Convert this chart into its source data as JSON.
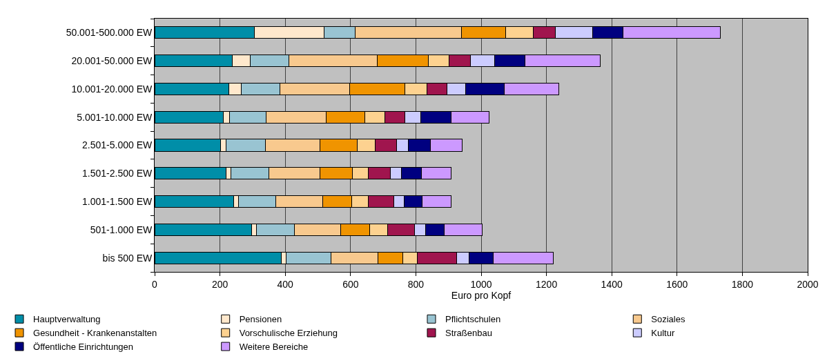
{
  "chart_data": {
    "type": "bar",
    "orientation": "horizontal",
    "stacked": true,
    "categories": [
      "50.001-500.000 EW",
      "20.001-50.000 EW",
      "10.001-20.000 EW",
      "5.001-10.000 EW",
      "2.501-5.000 EW",
      "1.501-2.500 EW",
      "1.001-1.500 EW",
      "501-1.000 EW",
      "bis 500 EW"
    ],
    "series": [
      {
        "name": "Hauptverwaltung",
        "color": "#008ea8",
        "values": [
          305,
          237,
          228,
          210,
          202,
          219,
          242,
          297,
          388
        ]
      },
      {
        "name": "Pensionen",
        "color": "#ffe8cc",
        "values": [
          215,
          56,
          37,
          20,
          17,
          15,
          15,
          14,
          15
        ]
      },
      {
        "name": "Pflichtschulen",
        "color": "#99c4d2",
        "values": [
          94,
          118,
          118,
          112,
          121,
          115,
          114,
          118,
          138
        ]
      },
      {
        "name": "Soziales",
        "color": "#f8c98e",
        "values": [
          326,
          270,
          214,
          183,
          166,
          158,
          143,
          140,
          143
        ]
      },
      {
        "name": "Gesundheit - Krankenanstalten",
        "color": "#f09400",
        "values": [
          136,
          157,
          169,
          118,
          114,
          99,
          89,
          89,
          75
        ]
      },
      {
        "name": "Vorschulische Erziehung",
        "color": "#fdd290",
        "values": [
          84,
          63,
          69,
          63,
          55,
          49,
          52,
          56,
          46
        ]
      },
      {
        "name": "Straßenbau",
        "color": "#a0154e",
        "values": [
          68,
          66,
          60,
          60,
          65,
          66,
          78,
          82,
          120
        ]
      },
      {
        "name": "Kultur",
        "color": "#ccccff",
        "values": [
          114,
          75,
          57,
          48,
          38,
          35,
          31,
          33,
          39
        ]
      },
      {
        "name": "Öffentliche Einrichtungen",
        "color": "#000080",
        "values": [
          92,
          92,
          119,
          94,
          67,
          61,
          56,
          58,
          74
        ]
      },
      {
        "name": "Weitere Bereiche",
        "color": "#cc99ff",
        "values": [
          299,
          231,
          167,
          116,
          97,
          91,
          89,
          117,
          183
        ]
      }
    ],
    "xlabel": "Euro pro Kopf",
    "xlim": [
      0,
      2000
    ],
    "xticks": [
      0,
      200,
      400,
      600,
      800,
      1000,
      1200,
      1400,
      1600,
      1800,
      2000
    ],
    "grid": "x",
    "legend": "bottom"
  }
}
